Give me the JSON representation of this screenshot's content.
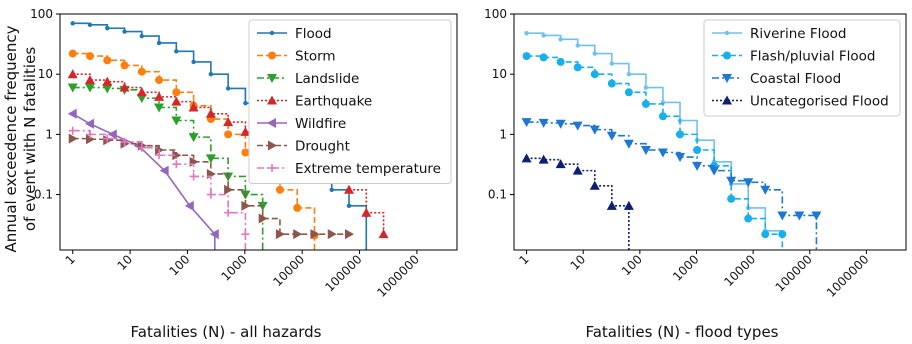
{
  "colors": {
    "flood": "#1f77b4",
    "storm": "#ff7f0e",
    "landslide": "#2ca02c",
    "earthquake": "#d62728",
    "wildfire": "#9467bd",
    "drought": "#8c564b",
    "extreme_temperature": "#e377c2",
    "riverine": "#6fc2f0",
    "flash": "#17b0ea",
    "coastal": "#1f77d4",
    "uncategorised": "#0b1f73"
  },
  "shared_ylabel_lines": [
    "Annual exceedence frequency",
    "of event with N fatalities"
  ],
  "chart_data": [
    {
      "type": "line",
      "xscale": "log",
      "yscale": "log",
      "title": "",
      "xlabel": "Fatalities (N) - all hazards",
      "ylabel": "Annual exceedence frequency of event with N fatalities",
      "xlim": [
        0.6,
        5000000
      ],
      "ylim": [
        0.012,
        100
      ],
      "x_ticks": [
        1,
        10,
        100,
        1000,
        10000,
        100000,
        1000000
      ],
      "x_tick_labels": [
        "1",
        "10",
        "100",
        "1000",
        "10000",
        "100000",
        "1000000"
      ],
      "y_ticks": [
        0.1,
        1,
        10,
        100
      ],
      "y_tick_labels": [
        "0.1",
        "1",
        "10",
        "100"
      ],
      "legend_position": "top-right",
      "series": [
        {
          "name": "Flood",
          "color_key": "flood",
          "marker": "dot",
          "dash": "solid",
          "step": true,
          "x": [
            1,
            2,
            4,
            8,
            16,
            32,
            64,
            128,
            256,
            512,
            1024,
            2048,
            4096,
            8192,
            16384,
            32768,
            65536,
            131072,
            131072
          ],
          "y": [
            70,
            66,
            58,
            51,
            43,
            33,
            24,
            16,
            10,
            5.8,
            3.3,
            1.8,
            0.9,
            0.45,
            0.22,
            0.12,
            0.065,
            0.045,
            0.012
          ]
        },
        {
          "name": "Storm",
          "color_key": "storm",
          "marker": "circle",
          "dash": "dash",
          "step": true,
          "x": [
            1,
            2,
            4,
            8,
            16,
            32,
            64,
            128,
            256,
            512,
            1024,
            2048,
            4096,
            8192,
            16384,
            16384
          ],
          "y": [
            22,
            20,
            17,
            14,
            11,
            8,
            5,
            3,
            1.8,
            1.0,
            0.5,
            0.25,
            0.12,
            0.06,
            0.021,
            0.012
          ]
        },
        {
          "name": "Landslide",
          "color_key": "landslide",
          "marker": "tri-down",
          "dash": "dashdot",
          "step": true,
          "x": [
            1,
            2,
            4,
            8,
            16,
            32,
            64,
            128,
            256,
            512,
            1024,
            2048,
            2048
          ],
          "y": [
            6,
            6,
            5.8,
            5.5,
            4,
            2.8,
            1.7,
            0.9,
            0.4,
            0.2,
            0.1,
            0.065,
            0.012
          ]
        },
        {
          "name": "Earthquake",
          "color_key": "earthquake",
          "marker": "tri-up",
          "dash": "dot",
          "step": true,
          "x": [
            1,
            2,
            4,
            8,
            16,
            32,
            64,
            128,
            256,
            512,
            1024,
            2048,
            4096,
            8192,
            16384,
            32768,
            65536,
            131072,
            262144
          ],
          "y": [
            10,
            8,
            7.5,
            6,
            5,
            4.2,
            3.5,
            2.8,
            2.2,
            1.6,
            1.1,
            0.75,
            0.5,
            0.35,
            0.25,
            0.18,
            0.12,
            0.05,
            0.022
          ]
        },
        {
          "name": "Wildfire",
          "color_key": "wildfire",
          "marker": "tri-left",
          "dash": "solid",
          "step": false,
          "x": [
            1,
            2,
            5,
            14,
            40,
            110,
            300,
            300
          ],
          "y": [
            2.2,
            1.5,
            1.0,
            0.65,
            0.25,
            0.065,
            0.022,
            0.012
          ]
        },
        {
          "name": "Drought",
          "color_key": "drought",
          "marker": "tri-right",
          "dash": "dash",
          "step": true,
          "x": [
            1,
            2,
            4,
            8,
            16,
            32,
            64,
            128,
            256,
            512,
            1024,
            2048,
            4096,
            8192,
            16384,
            32768,
            65536
          ],
          "y": [
            0.85,
            0.83,
            0.8,
            0.7,
            0.65,
            0.55,
            0.45,
            0.35,
            0.22,
            0.12,
            0.065,
            0.04,
            0.022,
            0.022,
            0.022,
            0.022,
            0.022
          ]
        },
        {
          "name": "Extreme temperature",
          "color_key": "extreme_temperature",
          "marker": "plus",
          "dash": "dashdot",
          "step": true,
          "x": [
            1,
            2,
            4,
            8,
            16,
            32,
            64,
            128,
            256,
            512,
            1024,
            1024
          ],
          "y": [
            1.15,
            1.0,
            0.85,
            0.75,
            0.6,
            0.45,
            0.32,
            0.2,
            0.1,
            0.05,
            0.022,
            0.012
          ]
        }
      ]
    },
    {
      "type": "line",
      "xscale": "log",
      "yscale": "log",
      "title": "",
      "xlabel": "Fatalities (N) - flood types",
      "ylabel": "Annual exceedence frequency of event with N fatalities",
      "xlim": [
        0.6,
        5000000
      ],
      "ylim": [
        0.012,
        100
      ],
      "x_ticks": [
        1,
        10,
        100,
        1000,
        10000,
        100000,
        1000000
      ],
      "x_tick_labels": [
        "1",
        "10",
        "100",
        "1000",
        "10000",
        "100000",
        "1000000"
      ],
      "y_ticks": [
        0.1,
        1,
        10,
        100
      ],
      "y_tick_labels": [
        "0.1",
        "1",
        "10",
        "100"
      ],
      "legend_position": "top-right",
      "series": [
        {
          "name": "Riverine Flood",
          "color_key": "riverine",
          "marker": "dot",
          "dash": "solid",
          "step": true,
          "x": [
            1,
            2,
            4,
            8,
            16,
            32,
            64,
            128,
            256,
            512,
            1024,
            2048,
            4096,
            8192,
            16384,
            32768
          ],
          "y": [
            48,
            44,
            38,
            30,
            22,
            15,
            10,
            6,
            3.4,
            1.7,
            0.8,
            0.35,
            0.15,
            0.06,
            0.025,
            0.022
          ]
        },
        {
          "name": "Flash/pluvial Flood",
          "color_key": "flash",
          "marker": "circle",
          "dash": "dash",
          "step": true,
          "x": [
            1,
            2,
            4,
            8,
            16,
            32,
            64,
            128,
            256,
            512,
            1024,
            2048,
            4096,
            8192,
            16384,
            32768,
            32768
          ],
          "y": [
            20,
            19,
            16,
            13,
            10,
            7,
            5,
            3.2,
            2,
            1,
            0.55,
            0.3,
            0.085,
            0.04,
            0.022,
            0.022,
            0.012
          ]
        },
        {
          "name": "Coastal Flood",
          "color_key": "coastal",
          "marker": "tri-down",
          "dash": "dashdot",
          "step": true,
          "x": [
            1,
            2,
            4,
            8,
            16,
            32,
            64,
            128,
            256,
            512,
            1024,
            2048,
            4096,
            8192,
            16384,
            32768,
            65536,
            131072,
            131072
          ],
          "y": [
            1.6,
            1.55,
            1.5,
            1.4,
            1.2,
            0.95,
            0.7,
            0.55,
            0.5,
            0.42,
            0.3,
            0.25,
            0.17,
            0.16,
            0.12,
            0.045,
            0.045,
            0.045,
            0.012
          ]
        },
        {
          "name": "Uncategorised Flood",
          "color_key": "uncategorised",
          "marker": "tri-up",
          "dash": "dot",
          "step": true,
          "x": [
            1,
            2,
            4,
            8,
            16,
            32,
            64,
            64
          ],
          "y": [
            0.4,
            0.38,
            0.32,
            0.25,
            0.14,
            0.065,
            0.065,
            0.012
          ]
        }
      ]
    }
  ]
}
